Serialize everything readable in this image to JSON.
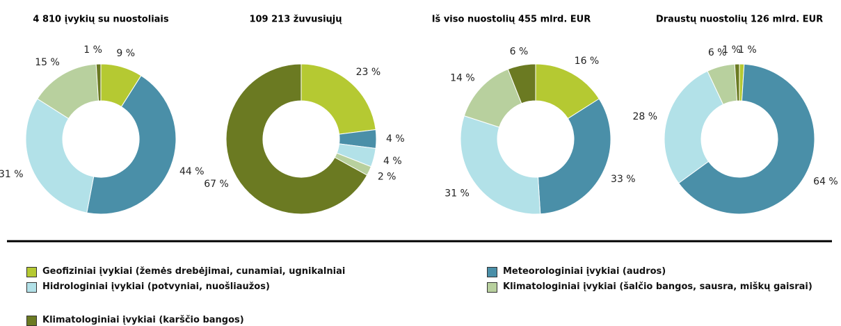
{
  "legend": [
    {
      "label": "Geofiziniai įvykiai (žemės drebėjimai, cunamiai, ugnikalniai",
      "color": "#b5c932"
    },
    {
      "label": "Meteorologiniai įvykiai (audros)",
      "color": "#4a8fa8"
    },
    {
      "label": "Hidrologiniai įvykiai (potvyniai, nuošliaužos)",
      "color": "#b2e1e8"
    },
    {
      "label": "Klimatologiniai įvykiai (šalčio bangos, sausra, miškų gaisrai)",
      "color": "#b8d09e"
    },
    {
      "label": "Klimatologiniai įvykiai (karščio bangos)",
      "color": "#6b7a22"
    }
  ],
  "chart_data": [
    {
      "type": "pie",
      "title": "4 810 įvykių su nuostoliais",
      "values": [
        9,
        44,
        31,
        15,
        1
      ],
      "value_labels": [
        "9 %",
        "44 %",
        "31 %",
        "15 %",
        "1 %"
      ]
    },
    {
      "type": "pie",
      "title": "109 213 žuvusiųjų",
      "values": [
        23,
        4,
        4,
        2,
        67
      ],
      "value_labels": [
        "23 %",
        "4 %",
        "4 %",
        "2 %",
        "67 %"
      ]
    },
    {
      "type": "pie",
      "title": "Iš viso nuostolių 455 mlrd. EUR",
      "values": [
        16,
        33,
        31,
        14,
        6
      ],
      "value_labels": [
        "16 %",
        "33 %",
        "31 %",
        "14 %",
        "6 %"
      ]
    },
    {
      "type": "pie",
      "title": "Draustų nuostolių 126 mlrd. EUR",
      "values": [
        1,
        64,
        28,
        6,
        1
      ],
      "value_labels": [
        "1 %",
        "64 %",
        "28 %",
        "6 %",
        "1 %"
      ]
    }
  ]
}
